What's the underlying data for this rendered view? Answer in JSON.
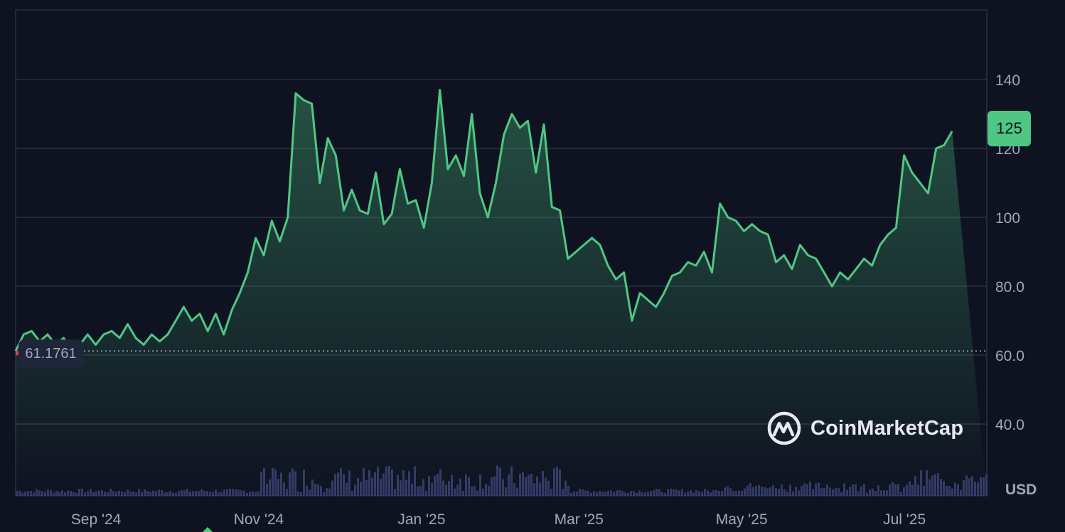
{
  "chart_data": {
    "type": "area",
    "title": "",
    "currency": "USD",
    "current_price_label": "125",
    "start_price_label": "61.1761",
    "brand": "CoinMarketCap",
    "ylim": [
      20,
      160
    ],
    "y_ticks": [
      {
        "value": 40,
        "label": "40.0"
      },
      {
        "value": 60,
        "label": "60.0"
      },
      {
        "value": 80,
        "label": "80.0"
      },
      {
        "value": 100,
        "label": "100"
      },
      {
        "value": 120,
        "label": "120"
      },
      {
        "value": 140,
        "label": "140"
      }
    ],
    "x_range": [
      "2024-08-12",
      "2025-08-11"
    ],
    "x_ticks": [
      {
        "date": "2024-09-01",
        "label": "Sep '24"
      },
      {
        "date": "2024-11-01",
        "label": "Nov '24"
      },
      {
        "date": "2025-01-01",
        "label": "Jan '25"
      },
      {
        "date": "2025-03-01",
        "label": "Mar '25"
      },
      {
        "date": "2025-05-01",
        "label": "May '25"
      },
      {
        "date": "2025-07-01",
        "label": "Jul '25"
      }
    ],
    "series": [
      {
        "values_x": [
          "2024-08-12",
          "2024-08-15",
          "2024-08-18",
          "2024-08-21",
          "2024-08-24",
          "2024-08-27",
          "2024-08-30",
          "2024-09-02",
          "2024-09-05",
          "2024-09-08",
          "2024-09-11",
          "2024-09-14",
          "2024-09-17",
          "2024-09-20",
          "2024-09-23",
          "2024-09-26",
          "2024-09-29",
          "2024-10-02",
          "2024-10-05",
          "2024-10-08",
          "2024-10-11",
          "2024-10-14",
          "2024-10-17",
          "2024-10-20",
          "2024-10-23",
          "2024-10-26",
          "2024-10-29",
          "2024-11-01",
          "2024-11-04",
          "2024-11-07",
          "2024-11-10",
          "2024-11-13",
          "2024-11-16",
          "2024-11-19",
          "2024-11-22",
          "2024-11-25",
          "2024-11-28",
          "2024-12-01",
          "2024-12-04",
          "2024-12-07",
          "2024-12-10",
          "2024-12-13",
          "2024-12-16",
          "2024-12-19",
          "2024-12-22",
          "2024-12-25",
          "2024-12-28",
          "2024-12-31",
          "2025-01-03",
          "2025-01-06",
          "2025-01-09",
          "2025-01-12",
          "2025-01-15",
          "2025-01-18",
          "2025-01-21",
          "2025-01-24",
          "2025-01-27",
          "2025-01-30",
          "2025-02-02",
          "2025-02-05",
          "2025-02-08",
          "2025-02-11",
          "2025-02-14",
          "2025-02-17",
          "2025-02-20",
          "2025-02-23",
          "2025-02-26",
          "2025-03-01",
          "2025-03-04",
          "2025-03-07",
          "2025-03-10",
          "2025-03-13",
          "2025-03-16",
          "2025-03-19",
          "2025-03-22",
          "2025-03-25",
          "2025-03-28",
          "2025-03-31",
          "2025-04-03",
          "2025-04-06",
          "2025-04-09",
          "2025-04-12",
          "2025-04-15",
          "2025-04-18",
          "2025-04-21",
          "2025-04-24",
          "2025-04-27",
          "2025-04-30",
          "2025-05-03",
          "2025-05-06",
          "2025-05-09",
          "2025-05-12",
          "2025-05-15",
          "2025-05-18",
          "2025-05-21",
          "2025-05-24",
          "2025-05-27",
          "2025-05-30",
          "2025-06-02",
          "2025-06-05",
          "2025-06-08",
          "2025-06-11",
          "2025-06-14",
          "2025-06-17",
          "2025-06-20",
          "2025-06-23",
          "2025-06-26",
          "2025-06-29",
          "2025-07-02",
          "2025-07-05",
          "2025-07-08",
          "2025-07-11",
          "2025-07-14",
          "2025-07-17",
          "2025-07-20",
          "2025-07-23",
          "2025-07-26",
          "2025-07-29",
          "2025-08-01",
          "2025-08-04",
          "2025-08-07",
          "2025-08-11"
        ],
        "values": [
          61.2,
          66,
          67,
          64,
          66,
          63,
          65,
          62,
          63,
          66,
          63,
          66,
          67,
          65,
          69,
          65,
          63,
          66,
          64,
          66,
          70,
          74,
          70,
          72,
          67,
          72,
          66,
          73,
          78,
          84,
          94,
          89,
          99,
          93,
          100,
          136,
          134,
          133,
          110,
          123,
          118,
          102,
          108,
          102,
          101,
          113,
          98,
          101,
          114,
          104,
          105,
          97,
          110,
          137,
          114,
          118,
          112,
          130,
          107,
          100,
          110,
          124,
          130,
          126,
          128,
          113,
          127,
          103,
          102,
          88,
          90,
          92,
          94,
          92,
          86,
          82,
          84,
          70,
          78,
          76,
          74,
          78,
          83,
          84,
          87,
          86,
          90,
          84,
          104,
          100,
          99,
          96,
          98,
          96,
          95,
          87,
          89,
          85,
          92,
          89,
          88,
          84,
          80,
          84,
          82,
          85,
          88,
          86,
          92,
          95,
          97,
          118,
          113,
          110,
          107,
          120,
          121,
          125
        ]
      }
    ]
  }
}
